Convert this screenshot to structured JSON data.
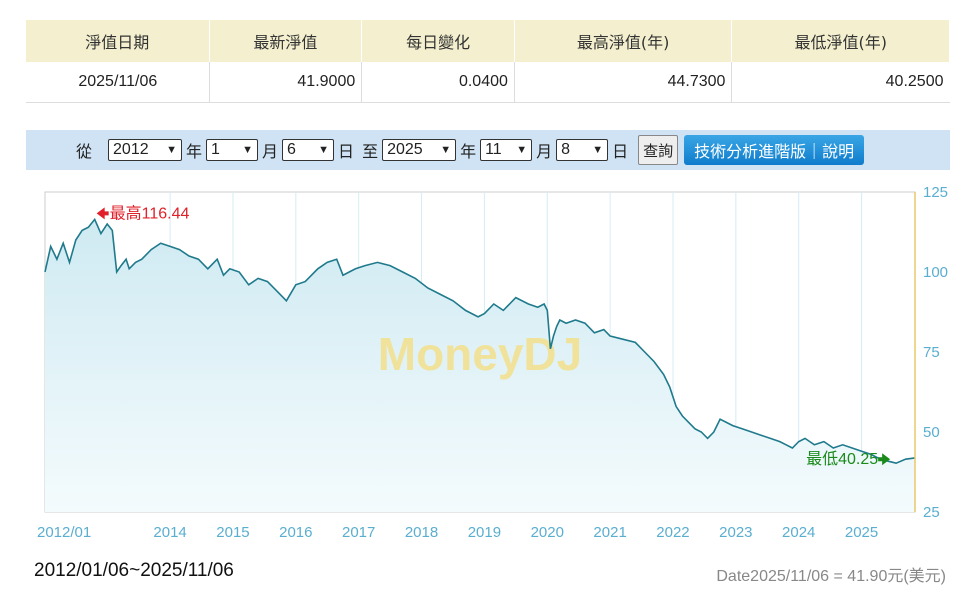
{
  "summary": {
    "headers": [
      "淨值日期",
      "最新淨值",
      "每日變化",
      "最高淨值(年)",
      "最低淨值(年)"
    ],
    "values": [
      "2025/11/06",
      "41.9000",
      "0.0400",
      "44.7300",
      "40.2500"
    ]
  },
  "query": {
    "from_label": "從",
    "year_unit": "年",
    "month_unit": "月",
    "day_unit": "日",
    "to_label": "至",
    "from_year": "2012",
    "from_month": "1",
    "from_day": "6",
    "to_year": "2025",
    "to_month": "11",
    "to_day": "8",
    "query_button": "查詢",
    "advanced_button": "技術分析進階版｜說明"
  },
  "chart_data": {
    "type": "area",
    "watermark": "MoneyDJ",
    "x_tick_labels": [
      "2012/01",
      "2014",
      "2015",
      "2016",
      "2017",
      "2018",
      "2019",
      "2020",
      "2021",
      "2022",
      "2023",
      "2024",
      "2025"
    ],
    "x_tick_values": [
      2012.01,
      2014.0,
      2015.0,
      2016.0,
      2017.0,
      2018.0,
      2019.0,
      2020.0,
      2021.0,
      2022.0,
      2023.0,
      2024.0,
      2025.0
    ],
    "y_ticks": [
      25,
      50,
      75,
      100,
      125
    ],
    "ylim": [
      25,
      125
    ],
    "xlim": [
      2012.01,
      2025.85
    ],
    "y_axis_side": "right",
    "grid": true,
    "series": [
      {
        "x": [
          2012.01,
          2012.1,
          2012.2,
          2012.3,
          2012.4,
          2012.5,
          2012.6,
          2012.7,
          2012.8,
          2012.9,
          2013.0,
          2013.08,
          2013.15,
          2013.22,
          2013.3,
          2013.35,
          2013.45,
          2013.55,
          2013.7,
          2013.85,
          2014.0,
          2014.15,
          2014.3,
          2014.45,
          2014.6,
          2014.75,
          2014.85,
          2014.95,
          2015.1,
          2015.25,
          2015.4,
          2015.55,
          2015.7,
          2015.85,
          2016.0,
          2016.15,
          2016.35,
          2016.5,
          2016.65,
          2016.75,
          2016.85,
          2016.95,
          2017.1,
          2017.3,
          2017.5,
          2017.7,
          2017.9,
          2018.1,
          2018.3,
          2018.5,
          2018.7,
          2018.9,
          2019.0,
          2019.15,
          2019.3,
          2019.5,
          2019.7,
          2019.85,
          2019.95,
          2020.0,
          2020.05,
          2020.1,
          2020.15,
          2020.2,
          2020.3,
          2020.45,
          2020.6,
          2020.75,
          2020.9,
          2021.0,
          2021.2,
          2021.4,
          2021.55,
          2021.7,
          2021.85,
          2021.95,
          2022.05,
          2022.15,
          2022.25,
          2022.35,
          2022.45,
          2022.55,
          2022.65,
          2022.75,
          2022.85,
          2022.95,
          2023.1,
          2023.25,
          2023.4,
          2023.55,
          2023.7,
          2023.8,
          2023.9,
          2024.0,
          2024.1,
          2024.25,
          2024.4,
          2024.55,
          2024.7,
          2024.85,
          2025.0,
          2025.15,
          2025.25,
          2025.4,
          2025.55,
          2025.7,
          2025.85
        ],
        "y": [
          100,
          108,
          104,
          109,
          103,
          110,
          113,
          114,
          116.44,
          112,
          115,
          113,
          100,
          102,
          104,
          101,
          103,
          104,
          107,
          109,
          108,
          107,
          105,
          104,
          101,
          104,
          99,
          101,
          100,
          96,
          98,
          97,
          94,
          91,
          96,
          97,
          101,
          103,
          104,
          99,
          100,
          101,
          102,
          103,
          102,
          100,
          98,
          95,
          93,
          91,
          88,
          86,
          87,
          90,
          88,
          92,
          90,
          89,
          90,
          88,
          76,
          80,
          83,
          85,
          84,
          85,
          84,
          81,
          82,
          80,
          79,
          78,
          75,
          72,
          68,
          64,
          58,
          55,
          53,
          51,
          50,
          48,
          50,
          54,
          53,
          52,
          51,
          50,
          49,
          48,
          47,
          46,
          45,
          47,
          48,
          46,
          47,
          45,
          46,
          45,
          44,
          43,
          42,
          41,
          40.25,
          41.5,
          41.9
        ]
      }
    ],
    "annotations": [
      {
        "label": "最高116.44",
        "x": 2012.8,
        "y": 116.44,
        "color": "#e0202a"
      },
      {
        "label": "最低40.25",
        "x": 2025.55,
        "y": 40.25,
        "color": "#1a8a1a"
      }
    ]
  },
  "footer": {
    "range": "2012/01/06~2025/11/06",
    "latest": "Date2025/11/06 =  41.90元(美元)"
  },
  "colors": {
    "line": "#1f7a8c",
    "area_top": "#cfeaf2",
    "area_bottom": "#f4fbfd",
    "axis_text": "#5aaed0",
    "right_axis": "#e8c86a",
    "header_bg": "#f4f0cf",
    "query_bg": "#cfe3f4"
  }
}
